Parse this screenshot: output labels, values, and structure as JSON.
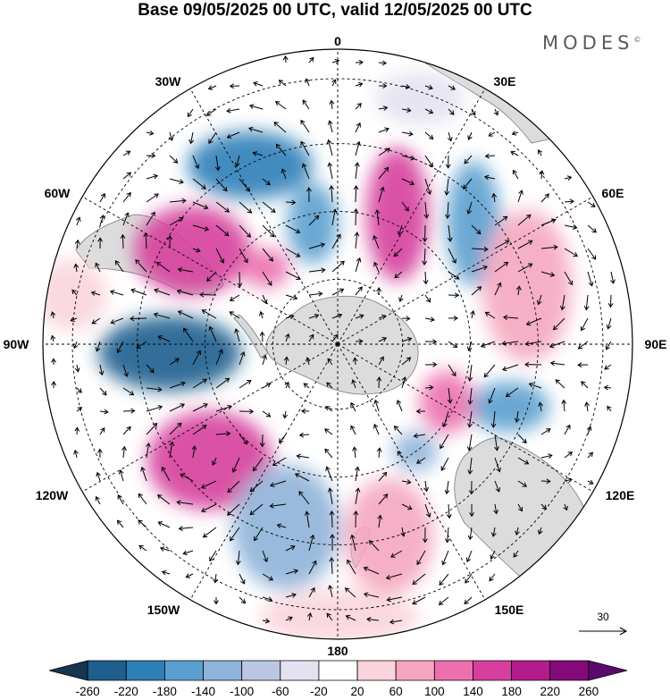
{
  "title": "Base 09/05/2025 00 UTC, valid 12/05/2025 00 UTC",
  "brand": "MODES",
  "brand_mark": "©",
  "projection": "south-polar-stereographic",
  "field": "geopotential-height-anomaly-with-wind-vectors",
  "longitude_labels": {
    "lon_0": "0",
    "lon_30e": "30E",
    "lon_60e": "60E",
    "lon_90e": "90E",
    "lon_120e": "120E",
    "lon_150e": "150E",
    "lon_180": "180",
    "lon_150w": "150W",
    "lon_120w": "120W",
    "lon_90w": "90W",
    "lon_60w": "60W",
    "lon_30w": "30W"
  },
  "reference_vector": {
    "value": "30"
  },
  "colorbar": {
    "ticks": [
      "-260",
      "-220",
      "-180",
      "-140",
      "-100",
      "-60",
      "-20",
      "20",
      "60",
      "100",
      "140",
      "180",
      "220",
      "260"
    ],
    "colors": [
      "#16354f",
      "#1e5f8e",
      "#2d7fb8",
      "#5a9fcf",
      "#8fb3d9",
      "#bcc6e3",
      "#e3e2f0",
      "#ffffff",
      "#f9d4dc",
      "#f5a7c0",
      "#ec6fae",
      "#d63f9d",
      "#b31c8b",
      "#850a79",
      "#5a0a6e"
    ]
  },
  "map_colors": {
    "land": "#dcdcdc",
    "coast": "#7a7a7a"
  }
}
